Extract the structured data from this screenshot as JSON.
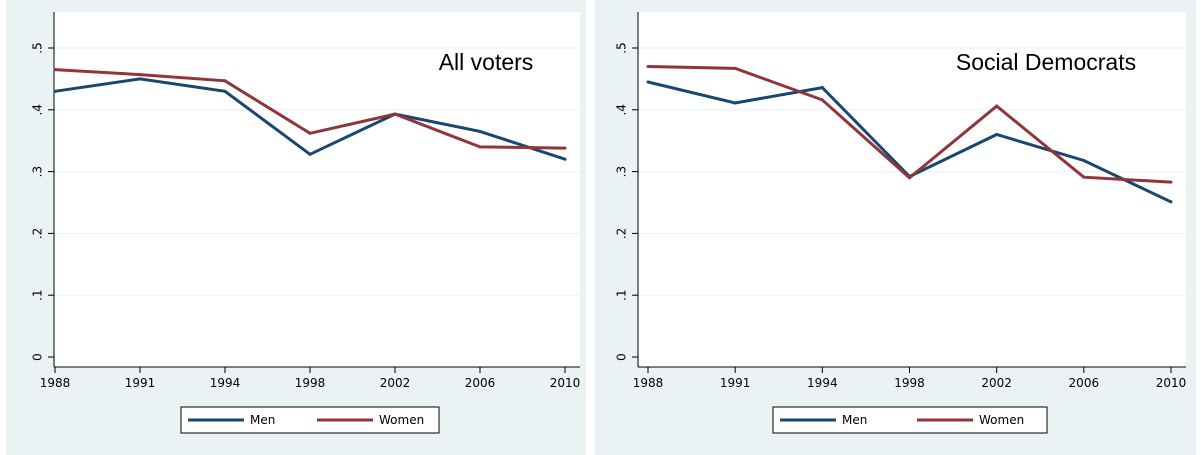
{
  "chart_data": [
    {
      "type": "line",
      "title": "All voters",
      "xlabel": "",
      "ylabel": "",
      "categories": [
        "1988",
        "1991",
        "1994",
        "1998",
        "2002",
        "2006",
        "2010"
      ],
      "y_ticks": [
        "0",
        ".1",
        ".2",
        ".3",
        ".4",
        ".5"
      ],
      "ylim": [
        0,
        0.5
      ],
      "grid": true,
      "legend_position": "bottom",
      "series": [
        {
          "name": "Men",
          "color": "#1a476f",
          "values": [
            0.43,
            0.45,
            0.43,
            0.328,
            0.393,
            0.365,
            0.32
          ]
        },
        {
          "name": "Women",
          "color": "#90353b",
          "values": [
            0.465,
            0.457,
            0.447,
            0.362,
            0.393,
            0.34,
            0.338
          ]
        }
      ]
    },
    {
      "type": "line",
      "title": "Social Democrats",
      "xlabel": "",
      "ylabel": "",
      "categories": [
        "1988",
        "1991",
        "1994",
        "1998",
        "2002",
        "2006",
        "2010"
      ],
      "y_ticks": [
        "0",
        ".1",
        ".2",
        ".3",
        ".4",
        ".5"
      ],
      "ylim": [
        0,
        0.5
      ],
      "grid": true,
      "legend_position": "bottom",
      "series": [
        {
          "name": "Men",
          "color": "#1a476f",
          "values": [
            0.445,
            0.411,
            0.436,
            0.292,
            0.36,
            0.318,
            0.251
          ]
        },
        {
          "name": "Women",
          "color": "#90353b",
          "values": [
            0.47,
            0.467,
            0.416,
            0.29,
            0.406,
            0.291,
            0.283
          ]
        }
      ]
    }
  ]
}
